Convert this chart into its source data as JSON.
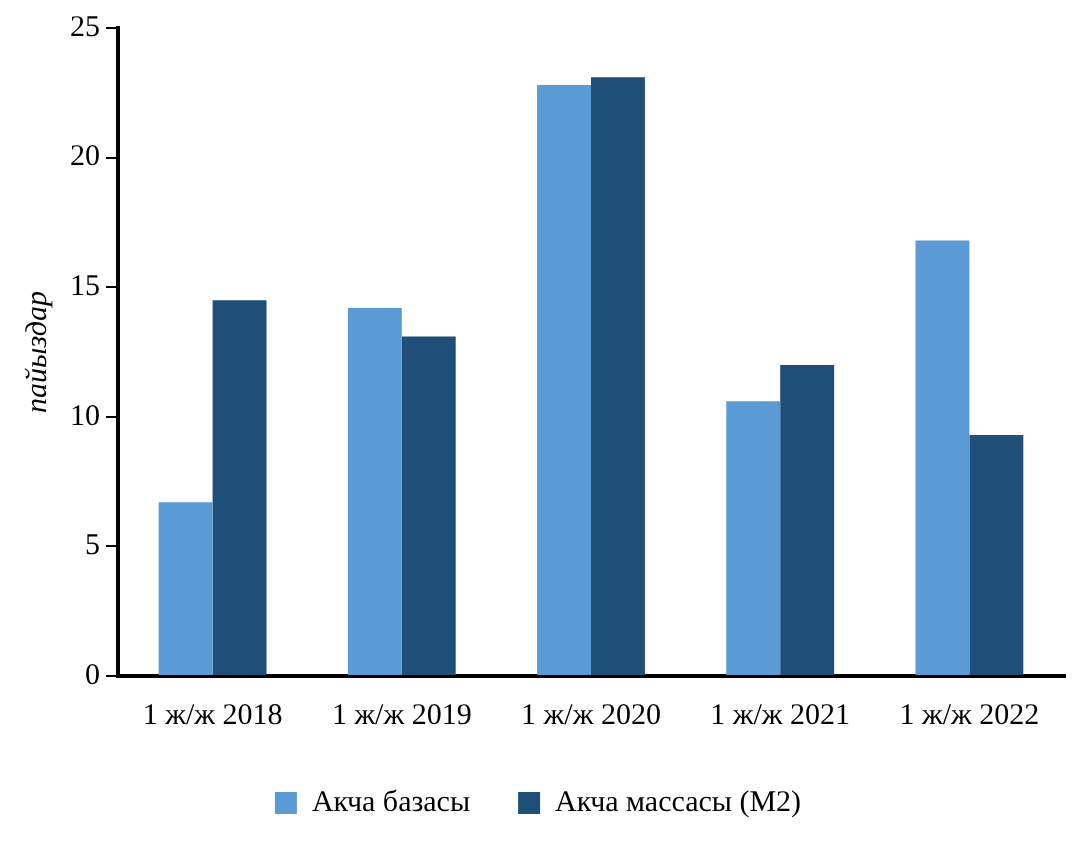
{
  "chart_data": {
    "type": "bar",
    "ylabel": "пайыздар",
    "categories": [
      "1 ж/ж 2018",
      "1 ж/ж 2019",
      "1 ж/ж 2020",
      "1 ж/ж 2021",
      "1 ж/ж 2022"
    ],
    "series": [
      {
        "name": "Акча базасы",
        "color": "#5b9bd5",
        "values": [
          6.7,
          14.2,
          22.8,
          10.6,
          16.8
        ]
      },
      {
        "name": "Акча массасы (M2)",
        "color": "#1f4e79",
        "values": [
          14.5,
          13.1,
          23.1,
          12.0,
          9.3
        ]
      }
    ],
    "ylim": [
      0,
      25
    ],
    "yticks": [
      0,
      5,
      10,
      15,
      20,
      25
    ],
    "grid": false,
    "legend": "bottom"
  }
}
